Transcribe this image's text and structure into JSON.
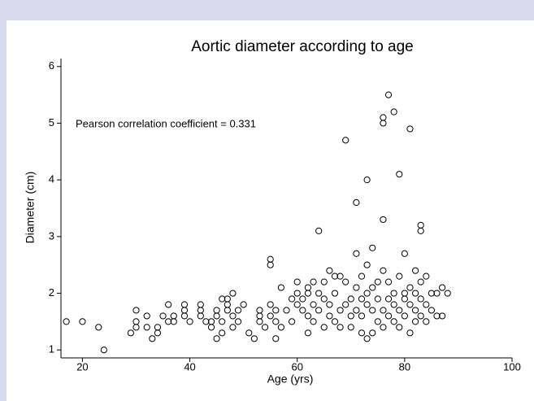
{
  "chart_data": {
    "type": "scatter",
    "title": "Aortic diameter according to age",
    "x_label": "Age (yrs)",
    "y_label": "Diameter (cm)",
    "annotation": "Pearson correlation coefficient =  0.331",
    "xlim": [
      16,
      100
    ],
    "ylim": [
      0.86,
      6.14
    ],
    "xticks": [
      20,
      40,
      60,
      80,
      100
    ],
    "yticks": [
      1,
      2,
      3,
      4,
      5,
      6
    ],
    "x": [
      17,
      20,
      23,
      24,
      29,
      30,
      30,
      30,
      32,
      32,
      33,
      34,
      34,
      35,
      36,
      36,
      37,
      37,
      39,
      39,
      39,
      40,
      42,
      42,
      42,
      43,
      44,
      44,
      45,
      45,
      45,
      46,
      46,
      46,
      47,
      47,
      47,
      48,
      48,
      48,
      49,
      49,
      50,
      51,
      52,
      53,
      53,
      53,
      54,
      55,
      55,
      55,
      55,
      56,
      56,
      56,
      57,
      57,
      58,
      59,
      59,
      60,
      60,
      60,
      61,
      61,
      62,
      62,
      62,
      62,
      63,
      63,
      63,
      64,
      64,
      64,
      65,
      65,
      65,
      66,
      66,
      66,
      67,
      67,
      67,
      68,
      68,
      68,
      69,
      69,
      69,
      70,
      70,
      70,
      71,
      71,
      71,
      71,
      72,
      72,
      72,
      72,
      73,
      73,
      73,
      73,
      73,
      74,
      74,
      74,
      74,
      75,
      75,
      75,
      76,
      76,
      76,
      76,
      76,
      76,
      77,
      77,
      77,
      77,
      78,
      78,
      78,
      78,
      79,
      79,
      79,
      79,
      80,
      80,
      80,
      80,
      81,
      81,
      81,
      81,
      82,
      82,
      82,
      82,
      83,
      83,
      83,
      83,
      83,
      84,
      84,
      84,
      85,
      85,
      86,
      86,
      87,
      87,
      88
    ],
    "values": [
      1.5,
      1.5,
      1.4,
      1.0,
      1.3,
      1.4,
      1.5,
      1.7,
      1.4,
      1.6,
      1.2,
      1.3,
      1.4,
      1.6,
      1.5,
      1.8,
      1.5,
      1.6,
      1.6,
      1.8,
      1.7,
      1.5,
      1.6,
      1.8,
      1.7,
      1.5,
      1.5,
      1.4,
      1.2,
      1.6,
      1.7,
      1.3,
      1.9,
      1.5,
      1.9,
      1.7,
      1.8,
      1.6,
      2.0,
      1.4,
      1.5,
      1.7,
      1.8,
      1.3,
      1.2,
      1.5,
      1.6,
      1.7,
      1.4,
      2.5,
      2.6,
      1.6,
      1.8,
      1.2,
      1.5,
      1.7,
      2.1,
      1.4,
      1.7,
      1.9,
      1.5,
      2.2,
      1.8,
      2.0,
      1.7,
      1.9,
      1.3,
      1.6,
      2.0,
      2.1,
      1.8,
      2.2,
      1.5,
      3.1,
      1.7,
      2.0,
      1.4,
      1.9,
      2.2,
      2.4,
      1.6,
      1.8,
      2.3,
      1.5,
      2.0,
      1.7,
      1.4,
      2.3,
      4.7,
      1.8,
      2.2,
      1.6,
      1.9,
      1.4,
      3.6,
      2.7,
      2.1,
      1.7,
      1.3,
      1.9,
      1.6,
      2.3,
      4.0,
      2.5,
      1.2,
      2.0,
      1.8,
      2.8,
      1.3,
      2.1,
      1.7,
      1.5,
      1.9,
      2.2,
      5.1,
      5.0,
      3.3,
      2.4,
      1.7,
      1.4,
      5.5,
      2.2,
      1.9,
      1.6,
      5.2,
      2.0,
      1.5,
      1.8,
      4.1,
      2.3,
      1.7,
      1.4,
      2.7,
      2.0,
      1.6,
      1.9,
      4.9,
      1.3,
      1.8,
      2.1,
      2.4,
      1.5,
      1.7,
      2.0,
      3.2,
      3.1,
      2.2,
      1.9,
      1.6,
      2.3,
      1.8,
      1.5,
      1.7,
      2.0,
      1.6,
      2.0,
      2.1,
      1.6,
      2.0
    ],
    "color": "#000000"
  }
}
